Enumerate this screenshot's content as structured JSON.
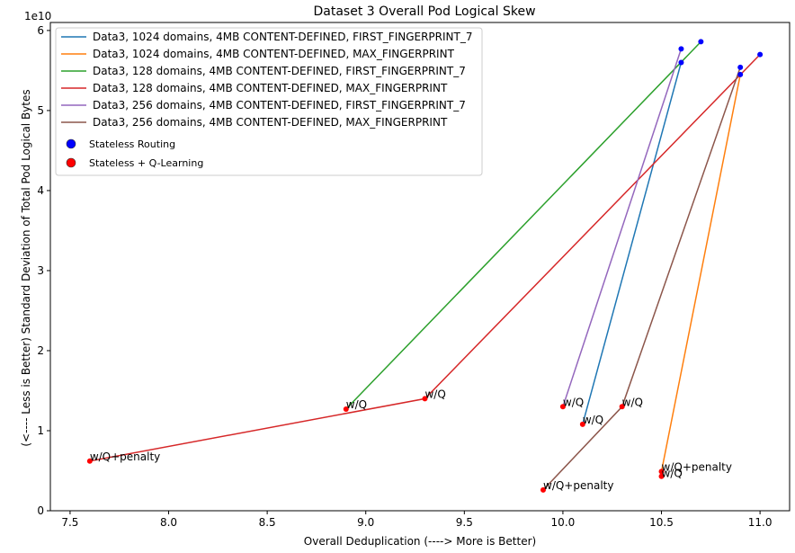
{
  "chart_data": {
    "type": "line",
    "title": "Dataset 3 Overall Pod Logical Skew",
    "xlabel": "Overall Deduplication (----> More is Better)",
    "ylabel": "(<---- Less is Better) Standard Deviation of Total Pod Logical Bytes",
    "y_offset_text": "1e10",
    "xlim": [
      7.4,
      11.15
    ],
    "ylim": [
      0,
      6.1
    ],
    "x_ticks": [
      "7.5",
      "8.0",
      "8.5",
      "9.0",
      "9.5",
      "10.0",
      "10.5",
      "11.0"
    ],
    "x_tick_values": [
      7.5,
      8.0,
      8.5,
      9.0,
      9.5,
      10.0,
      10.5,
      11.0
    ],
    "y_ticks": [
      "0",
      "1",
      "2",
      "3",
      "4",
      "5",
      "6"
    ],
    "y_tick_values": [
      0,
      1,
      2,
      3,
      4,
      5,
      6
    ],
    "grid": false,
    "legend_position": "top-left",
    "series": [
      {
        "name": "Data3, 1024 domains, 4MB CONTENT-DEFINED, FIRST_FINGERPRINT_7",
        "color": "#1f77b4",
        "points": [
          {
            "x": 10.6,
            "y": 5.6,
            "label": ""
          },
          {
            "x": 10.1,
            "y": 1.08,
            "label": "w/Q"
          }
        ]
      },
      {
        "name": "Data3, 1024 domains, 4MB CONTENT-DEFINED, MAX_FINGERPRINT",
        "color": "#ff7f0e",
        "points": [
          {
            "x": 10.9,
            "y": 5.45,
            "label": ""
          },
          {
            "x": 10.5,
            "y": 0.49,
            "label": "w/Q+penalty"
          }
        ]
      },
      {
        "name": "Data3, 128 domains, 4MB CONTENT-DEFINED, FIRST_FINGERPRINT_7",
        "color": "#2ca02c",
        "points": [
          {
            "x": 10.7,
            "y": 5.86,
            "label": ""
          },
          {
            "x": 8.9,
            "y": 1.27,
            "label": "w/Q"
          }
        ]
      },
      {
        "name": "Data3, 128 domains, 4MB CONTENT-DEFINED, MAX_FINGERPRINT",
        "color": "#d62728",
        "points": [
          {
            "x": 11.0,
            "y": 5.7,
            "label": ""
          },
          {
            "x": 9.3,
            "y": 1.4,
            "label": "w/Q"
          },
          {
            "x": 7.6,
            "y": 0.62,
            "label": "w/Q+penalty"
          }
        ]
      },
      {
        "name": "Data3, 256 domains, 4MB CONTENT-DEFINED, FIRST_FINGERPRINT_7",
        "color": "#9467bd",
        "points": [
          {
            "x": 10.6,
            "y": 5.77,
            "label": ""
          },
          {
            "x": 10.0,
            "y": 1.3,
            "label": "w/Q"
          }
        ]
      },
      {
        "name": "Data3, 256 domains, 4MB CONTENT-DEFINED, MAX_FINGERPRINT",
        "color": "#8c564b",
        "points": [
          {
            "x": 10.9,
            "y": 5.54,
            "label": ""
          },
          {
            "x": 10.3,
            "y": 1.3,
            "label": "w/Q"
          },
          {
            "x": 9.9,
            "y": 0.26,
            "label": "w/Q+penalty"
          }
        ]
      }
    ],
    "extra_red_points": [
      {
        "x": 10.5,
        "y": 0.43,
        "label": "w/Q"
      }
    ],
    "marker_legend": [
      {
        "name": "Stateless Routing",
        "color": "#0000ff"
      },
      {
        "name": "Stateless + Q-Learning",
        "color": "#ff0000"
      }
    ]
  }
}
